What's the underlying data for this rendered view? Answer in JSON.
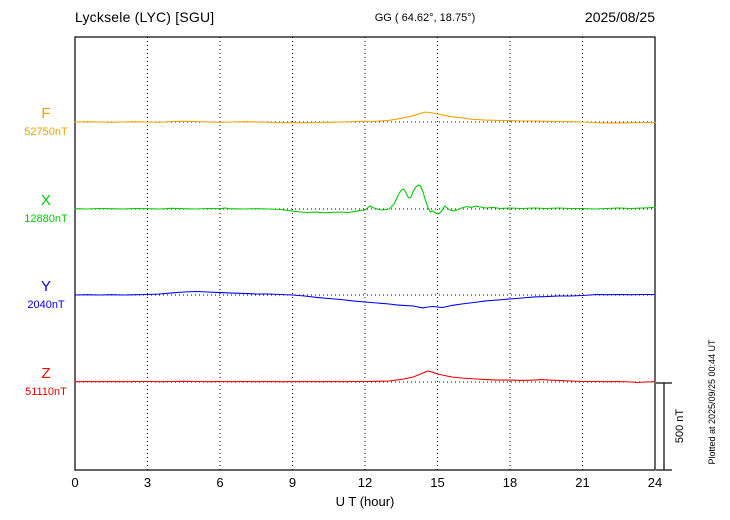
{
  "header": {
    "station": "Lycksele (LYC)  [SGU]",
    "coords": "GG ( 64.62°,  18.75°)",
    "date": "2025/08/25"
  },
  "axis": {
    "x_ticks": [
      "0",
      "3",
      "6",
      "9",
      "12",
      "15",
      "18",
      "21",
      "24"
    ],
    "x_label": "U T (hour)"
  },
  "scale_bar": {
    "label": "500 nT",
    "nt": 500
  },
  "footer_note": "Plotted at 2025/09/25 00:44 UT",
  "chart_data": {
    "type": "line",
    "title": "Lycksele (LYC) [SGU] magnetogram 2025/08/25",
    "xlabel": "U T (hour)",
    "x_range": [
      0,
      24
    ],
    "grid_hours": [
      3,
      6,
      9,
      12,
      15,
      18,
      21
    ],
    "point_format": "[UT_hour, offset_nT_from_baseline]",
    "scale_reference": {
      "label": "500 nT",
      "nt": 500
    },
    "series": [
      {
        "name": "F",
        "baseline_label": "52750nT",
        "baseline_nt": 52750,
        "color": "#f5a300",
        "points": [
          [
            0,
            0
          ],
          [
            0.5,
            2
          ],
          [
            1,
            0
          ],
          [
            1.5,
            -2
          ],
          [
            2,
            0
          ],
          [
            2.5,
            2
          ],
          [
            3,
            0
          ],
          [
            3.5,
            -2
          ],
          [
            4,
            3
          ],
          [
            4.5,
            4
          ],
          [
            5,
            3
          ],
          [
            5.5,
            0
          ],
          [
            6,
            -2
          ],
          [
            6.5,
            0
          ],
          [
            7,
            2
          ],
          [
            7.5,
            0
          ],
          [
            8,
            -2
          ],
          [
            8.5,
            -3
          ],
          [
            9,
            -4
          ],
          [
            9.5,
            -4
          ],
          [
            10,
            -3
          ],
          [
            10.5,
            -2
          ],
          [
            11,
            0
          ],
          [
            11.5,
            2
          ],
          [
            12,
            4
          ],
          [
            12.3,
            3
          ],
          [
            12.6,
            6
          ],
          [
            13,
            10
          ],
          [
            13.3,
            16
          ],
          [
            13.6,
            24
          ],
          [
            14,
            36
          ],
          [
            14.3,
            50
          ],
          [
            14.5,
            57
          ],
          [
            14.8,
            52
          ],
          [
            15,
            46
          ],
          [
            15.3,
            38
          ],
          [
            15.6,
            30
          ],
          [
            16,
            24
          ],
          [
            16.3,
            18
          ],
          [
            16.6,
            14
          ],
          [
            17,
            11
          ],
          [
            17.5,
            9
          ],
          [
            18,
            8
          ],
          [
            18.5,
            6
          ],
          [
            19,
            5
          ],
          [
            19.5,
            4
          ],
          [
            20,
            3
          ],
          [
            20.5,
            2
          ],
          [
            21,
            0
          ],
          [
            21.5,
            -3
          ],
          [
            22,
            -5
          ],
          [
            22.5,
            -5
          ],
          [
            23,
            -4
          ],
          [
            23.5,
            -3
          ],
          [
            24,
            -3
          ]
        ]
      },
      {
        "name": "X",
        "baseline_label": "12880nT",
        "baseline_nt": 12880,
        "color": "#00cc00",
        "points": [
          [
            0,
            2
          ],
          [
            0.5,
            0
          ],
          [
            1,
            3
          ],
          [
            1.5,
            2
          ],
          [
            2,
            0
          ],
          [
            2.5,
            3
          ],
          [
            3,
            2
          ],
          [
            3.5,
            0
          ],
          [
            4,
            4
          ],
          [
            4.5,
            2
          ],
          [
            5,
            0
          ],
          [
            5.5,
            3
          ],
          [
            6,
            2
          ],
          [
            6.2,
            6
          ],
          [
            6.4,
            2
          ],
          [
            7,
            0
          ],
          [
            7.5,
            2
          ],
          [
            8,
            0
          ],
          [
            8.5,
            -3
          ],
          [
            9,
            -12
          ],
          [
            9.3,
            -17
          ],
          [
            9.6,
            -20
          ],
          [
            10,
            -18
          ],
          [
            10.3,
            -22
          ],
          [
            10.6,
            -20
          ],
          [
            11,
            -17
          ],
          [
            11.3,
            -20
          ],
          [
            11.6,
            -14
          ],
          [
            11.8,
            -8
          ],
          [
            12,
            -6
          ],
          [
            12.1,
            6
          ],
          [
            12.2,
            17
          ],
          [
            12.3,
            9
          ],
          [
            12.5,
            0
          ],
          [
            12.7,
            -6
          ],
          [
            13,
            0
          ],
          [
            13.2,
            29
          ],
          [
            13.4,
            86
          ],
          [
            13.5,
            109
          ],
          [
            13.6,
            115
          ],
          [
            13.7,
            92
          ],
          [
            13.8,
            63
          ],
          [
            13.9,
            69
          ],
          [
            14,
            103
          ],
          [
            14.1,
            126
          ],
          [
            14.2,
            138
          ],
          [
            14.3,
            132
          ],
          [
            14.4,
            98
          ],
          [
            14.5,
            52
          ],
          [
            14.6,
            11
          ],
          [
            14.7,
            -17
          ],
          [
            14.8,
            -11
          ],
          [
            14.9,
            -20
          ],
          [
            15,
            -29
          ],
          [
            15.1,
            -23
          ],
          [
            15.2,
            -6
          ],
          [
            15.3,
            17
          ],
          [
            15.4,
            6
          ],
          [
            15.5,
            -6
          ],
          [
            15.7,
            -11
          ],
          [
            16,
            6
          ],
          [
            16.2,
            14
          ],
          [
            16.4,
            9
          ],
          [
            16.6,
            17
          ],
          [
            16.8,
            11
          ],
          [
            17,
            6
          ],
          [
            17.3,
            9
          ],
          [
            17.6,
            3
          ],
          [
            18,
            6
          ],
          [
            18.5,
            3
          ],
          [
            19,
            6
          ],
          [
            19.5,
            3
          ],
          [
            20,
            6
          ],
          [
            20.5,
            3
          ],
          [
            21,
            3
          ],
          [
            21.5,
            0
          ],
          [
            22,
            3
          ],
          [
            22.5,
            6
          ],
          [
            23,
            3
          ],
          [
            23.5,
            6
          ],
          [
            24,
            9
          ]
        ]
      },
      {
        "name": "Y",
        "baseline_label": "2040nT",
        "baseline_nt": 2040,
        "color": "#0000ee",
        "points": [
          [
            0,
            0
          ],
          [
            0.5,
            2
          ],
          [
            1,
            0
          ],
          [
            1.5,
            2
          ],
          [
            2,
            0
          ],
          [
            2.5,
            2
          ],
          [
            3,
            3
          ],
          [
            3.5,
            6
          ],
          [
            4,
            12
          ],
          [
            4.5,
            17
          ],
          [
            5,
            20
          ],
          [
            5.5,
            17
          ],
          [
            6,
            14
          ],
          [
            6.5,
            11
          ],
          [
            7,
            9
          ],
          [
            7.5,
            6
          ],
          [
            8,
            6
          ],
          [
            8.5,
            3
          ],
          [
            9,
            0
          ],
          [
            9.5,
            -6
          ],
          [
            10,
            -14
          ],
          [
            10.5,
            -20
          ],
          [
            11,
            -26
          ],
          [
            11.5,
            -34
          ],
          [
            12,
            -40
          ],
          [
            12.5,
            -46
          ],
          [
            13,
            -52
          ],
          [
            13.3,
            -57
          ],
          [
            13.6,
            -60
          ],
          [
            14,
            -63
          ],
          [
            14.2,
            -69
          ],
          [
            14.4,
            -74
          ],
          [
            14.6,
            -69
          ],
          [
            14.8,
            -66
          ],
          [
            15,
            -69
          ],
          [
            15.2,
            -72
          ],
          [
            15.4,
            -66
          ],
          [
            15.6,
            -60
          ],
          [
            16,
            -52
          ],
          [
            16.5,
            -43
          ],
          [
            17,
            -34
          ],
          [
            17.5,
            -29
          ],
          [
            18,
            -23
          ],
          [
            18.5,
            -17
          ],
          [
            19,
            -11
          ],
          [
            19.5,
            -9
          ],
          [
            20,
            -6
          ],
          [
            20.5,
            -6
          ],
          [
            21,
            -3
          ],
          [
            21.3,
            0
          ],
          [
            21.6,
            3
          ],
          [
            22,
            2
          ],
          [
            22.5,
            3
          ],
          [
            23,
            2
          ],
          [
            23.5,
            3
          ],
          [
            24,
            3
          ]
        ]
      },
      {
        "name": "Z",
        "baseline_label": "51110nT",
        "baseline_nt": 51110,
        "color": "#ee0000",
        "points": [
          [
            0,
            2
          ],
          [
            0.5,
            3
          ],
          [
            1,
            2
          ],
          [
            1.5,
            3
          ],
          [
            2,
            2
          ],
          [
            2.5,
            3
          ],
          [
            3,
            3
          ],
          [
            3.5,
            2
          ],
          [
            4,
            3
          ],
          [
            4.5,
            4
          ],
          [
            5,
            3
          ],
          [
            5.5,
            2
          ],
          [
            6,
            3
          ],
          [
            6.5,
            2
          ],
          [
            7,
            3
          ],
          [
            7.5,
            2
          ],
          [
            8,
            3
          ],
          [
            8.5,
            2
          ],
          [
            9,
            2
          ],
          [
            9.5,
            3
          ],
          [
            10,
            2
          ],
          [
            10.5,
            3
          ],
          [
            11,
            2
          ],
          [
            11.5,
            3
          ],
          [
            12,
            3
          ],
          [
            12.5,
            4
          ],
          [
            13,
            6
          ],
          [
            13.3,
            11
          ],
          [
            13.6,
            17
          ],
          [
            14,
            29
          ],
          [
            14.2,
            40
          ],
          [
            14.4,
            52
          ],
          [
            14.6,
            63
          ],
          [
            14.8,
            57
          ],
          [
            15,
            46
          ],
          [
            15.2,
            40
          ],
          [
            15.4,
            34
          ],
          [
            15.6,
            29
          ],
          [
            16,
            23
          ],
          [
            16.3,
            20
          ],
          [
            16.6,
            17
          ],
          [
            17,
            14
          ],
          [
            17.5,
            11
          ],
          [
            18,
            11
          ],
          [
            18.5,
            9
          ],
          [
            19,
            11
          ],
          [
            19.3,
            14
          ],
          [
            19.6,
            11
          ],
          [
            20,
            9
          ],
          [
            20.5,
            6
          ],
          [
            21,
            3
          ],
          [
            21.5,
            3
          ],
          [
            22,
            2
          ],
          [
            22.5,
            3
          ],
          [
            23,
            0
          ],
          [
            23.3,
            -3
          ],
          [
            23.6,
            0
          ],
          [
            24,
            2
          ]
        ]
      }
    ]
  }
}
